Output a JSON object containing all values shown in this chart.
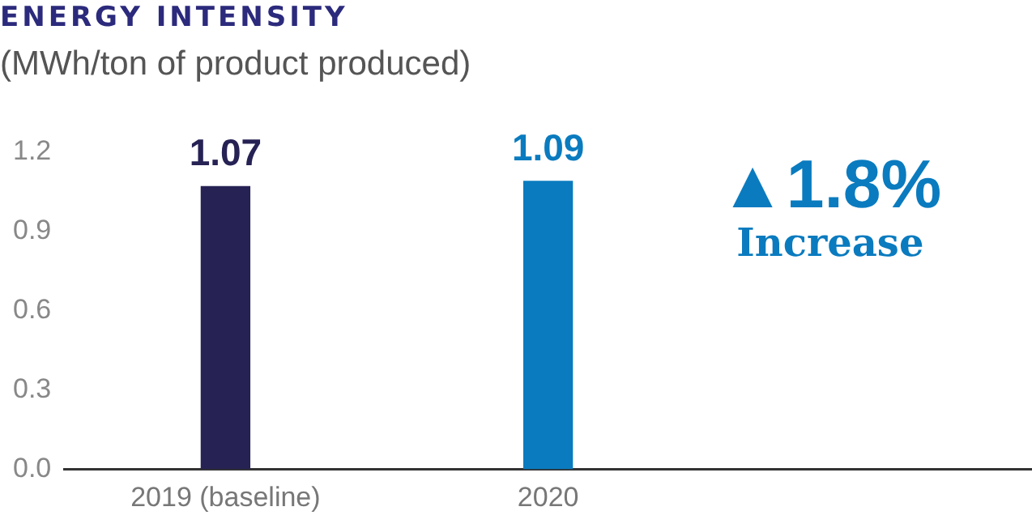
{
  "chart_data": {
    "type": "bar",
    "title": "ENERGY INTENSITY",
    "subtitle": "(MWh/ton of product produced)",
    "categories": [
      "2019 (baseline)",
      "2020",
      null
    ],
    "values": [
      1.07,
      1.09,
      null
    ],
    "colors": [
      "#262254",
      "#0a7bbf",
      null
    ],
    "ylim": [
      0,
      1.2
    ],
    "yticks": [
      {
        "value": 0,
        "label": "0.0"
      },
      0.3,
      0.6,
      0.9,
      1.2
    ],
    "grid": false,
    "legend": false,
    "data_labels": true,
    "annotations": [
      "▲1.8%",
      "Increase"
    ]
  }
}
